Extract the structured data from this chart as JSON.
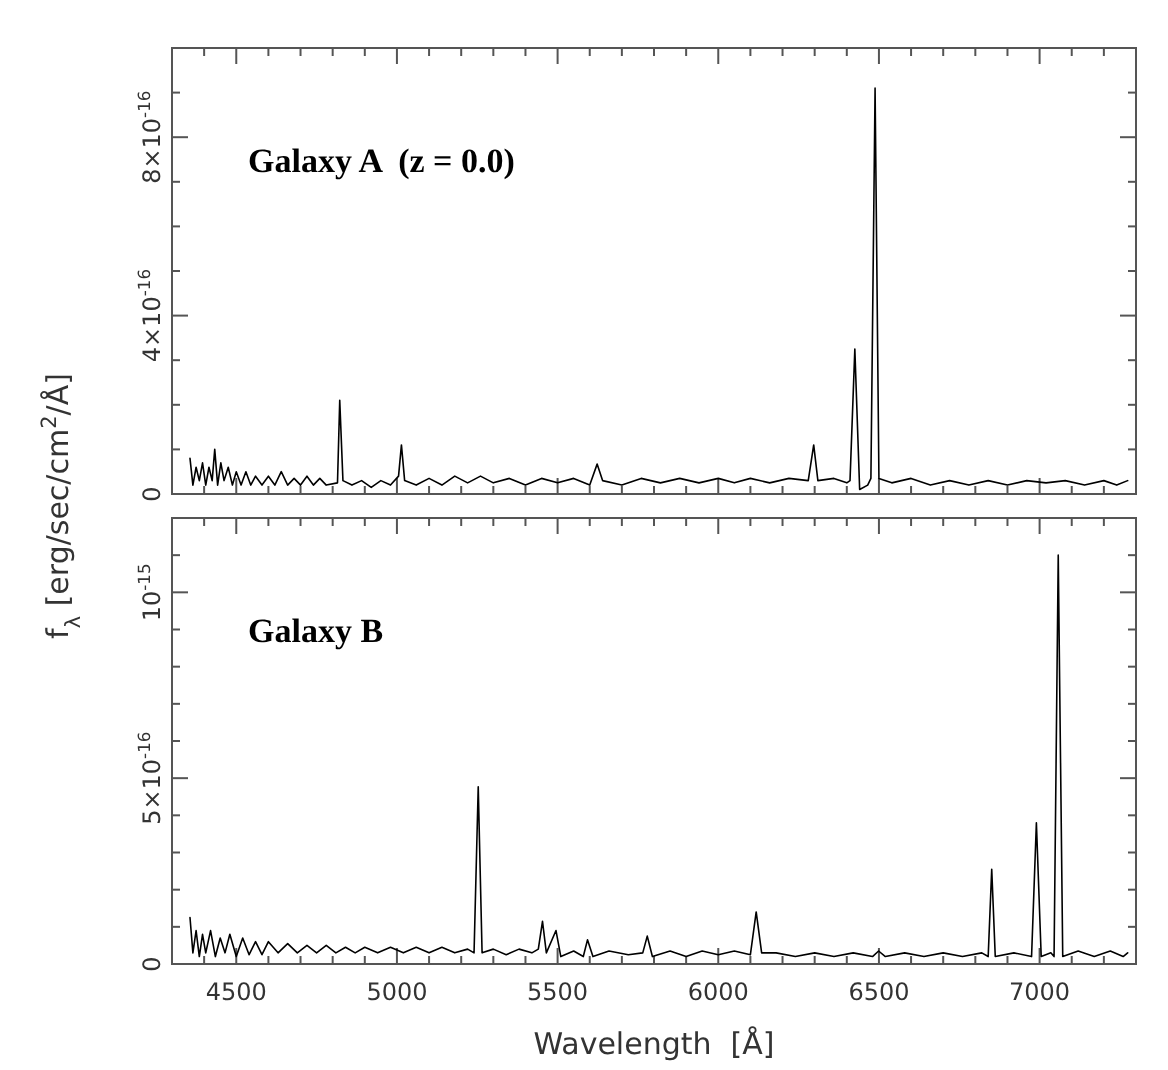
{
  "chart_data": [
    {
      "type": "line",
      "ylabel": "f$_{λ}$ [erg/sec/cm$^{2}$/Å]",
      "annotations": [
        "Galaxy A  (z = 0.0)"
      ],
      "tick_labels": "y",
      "xlim": [
        4300,
        7300
      ],
      "ylim": [
        0,
        1e-15
      ],
      "xticks": [
        {
          "value": 4400,
          "label": null
        },
        4500,
        {
          "value": 4600,
          "label": null
        },
        {
          "value": 4700,
          "label": null
        },
        {
          "value": 4800,
          "label": null
        },
        {
          "value": 4900,
          "label": null
        },
        5000,
        {
          "value": 5100,
          "label": null
        },
        {
          "value": 5200,
          "label": null
        },
        {
          "value": 5300,
          "label": null
        },
        {
          "value": 5400,
          "label": null
        },
        5500,
        {
          "value": 5600,
          "label": null
        },
        {
          "value": 5700,
          "label": null
        },
        {
          "value": 5800,
          "label": null
        },
        {
          "value": 5900,
          "label": null
        },
        6000,
        {
          "value": 6100,
          "label": null
        },
        {
          "value": 6200,
          "label": null
        },
        {
          "value": 6300,
          "label": null
        },
        {
          "value": 6400,
          "label": null
        },
        6500,
        {
          "value": 6600,
          "label": null
        },
        {
          "value": 6700,
          "label": null
        },
        {
          "value": 6800,
          "label": null
        },
        {
          "value": 6900,
          "label": null
        },
        7000,
        {
          "value": 7100,
          "label": null
        },
        {
          "value": 7200,
          "label": null
        }
      ],
      "yticks": [
        0,
        {
          "value": 1e-16,
          "label": null
        },
        {
          "value": 2e-16,
          "label": null
        },
        {
          "value": 3e-16,
          "label": null
        },
        {
          "value": 4e-16,
          "label": "4×10$^{-16}$"
        },
        {
          "value": 5e-16,
          "label": null
        },
        {
          "value": 6e-16,
          "label": null
        },
        {
          "value": 7e-16,
          "label": null
        },
        {
          "value": 8e-16,
          "label": "8×10$^{-16}$"
        },
        {
          "value": 9e-16,
          "label": null
        }
      ],
      "series": [
        {
          "color": "#000000",
          "x": [
            4356,
            4365,
            4375,
            4385,
            4395,
            4405,
            4415,
            4425,
            4433,
            4442,
            4452,
            4462,
            4475,
            4488,
            4500,
            4515,
            4530,
            4545,
            4560,
            4580,
            4600,
            4620,
            4640,
            4660,
            4680,
            4700,
            4720,
            4740,
            4760,
            4780,
            4815,
            4822,
            4832,
            4860,
            4890,
            4920,
            4950,
            4980,
            5005,
            5014,
            5024,
            5060,
            5100,
            5140,
            5180,
            5220,
            5260,
            5300,
            5350,
            5400,
            5450,
            5500,
            5550,
            5600,
            5623,
            5640,
            5700,
            5760,
            5820,
            5880,
            5940,
            6000,
            6050,
            6100,
            6160,
            6220,
            6280,
            6297,
            6310,
            6360,
            6400,
            6410,
            6425,
            6440,
            6465,
            6475,
            6488,
            6500,
            6540,
            6600,
            6660,
            6720,
            6780,
            6840,
            6900,
            6960,
            7020,
            7080,
            7140,
            7200,
            7240,
            7274
          ],
          "values": [
            8e-17,
            2e-17,
            6e-17,
            3e-17,
            7e-17,
            2e-17,
            6e-17,
            3e-17,
            1e-16,
            2e-17,
            7e-17,
            3e-17,
            6e-17,
            2e-17,
            5e-17,
            2e-17,
            5e-17,
            2e-17,
            4e-17,
            2e-17,
            4e-17,
            2e-17,
            5e-17,
            2e-17,
            3.5e-17,
            2e-17,
            4e-17,
            2e-17,
            3.5e-17,
            2e-17,
            2.5e-17,
            2.1e-16,
            3e-17,
            2e-17,
            3e-17,
            1.5e-17,
            3e-17,
            2e-17,
            4e-17,
            1.1e-16,
            3e-17,
            2e-17,
            3.5e-17,
            2e-17,
            4e-17,
            2.5e-17,
            4e-17,
            2.5e-17,
            3.5e-17,
            2e-17,
            3.5e-17,
            2.5e-17,
            3.5e-17,
            2e-17,
            6.7e-17,
            3e-17,
            2e-17,
            3.5e-17,
            2.5e-17,
            3.5e-17,
            2.5e-17,
            3.5e-17,
            2.5e-17,
            3.5e-17,
            2.5e-17,
            3.5e-17,
            3e-17,
            1.1e-16,
            3e-17,
            3.5e-17,
            2.5e-17,
            3e-17,
            3.25e-16,
            1e-17,
            2e-17,
            3.5e-17,
            9.1e-16,
            3.5e-17,
            2.5e-17,
            3.5e-17,
            2e-17,
            3e-17,
            2e-17,
            3e-17,
            2e-17,
            3e-17,
            2.5e-17,
            3e-17,
            2e-17,
            3e-17,
            2e-17,
            3e-17
          ]
        }
      ]
    },
    {
      "type": "line",
      "xlabel": "Wavelength  [Å]",
      "annotations": [
        "Galaxy B"
      ],
      "xlim": [
        4300,
        7300
      ],
      "ylim": [
        0,
        1.2e-15
      ],
      "xticks": [
        {
          "value": 4400,
          "label": null
        },
        4500,
        {
          "value": 4600,
          "label": null
        },
        {
          "value": 4700,
          "label": null
        },
        {
          "value": 4800,
          "label": null
        },
        {
          "value": 4900,
          "label": null
        },
        5000,
        {
          "value": 5100,
          "label": null
        },
        {
          "value": 5200,
          "label": null
        },
        {
          "value": 5300,
          "label": null
        },
        {
          "value": 5400,
          "label": null
        },
        5500,
        {
          "value": 5600,
          "label": null
        },
        {
          "value": 5700,
          "label": null
        },
        {
          "value": 5800,
          "label": null
        },
        {
          "value": 5900,
          "label": null
        },
        6000,
        {
          "value": 6100,
          "label": null
        },
        {
          "value": 6200,
          "label": null
        },
        {
          "value": 6300,
          "label": null
        },
        {
          "value": 6400,
          "label": null
        },
        6500,
        {
          "value": 6600,
          "label": null
        },
        {
          "value": 6700,
          "label": null
        },
        {
          "value": 6800,
          "label": null
        },
        {
          "value": 6900,
          "label": null
        },
        7000,
        {
          "value": 7100,
          "label": null
        },
        {
          "value": 7200,
          "label": null
        }
      ],
      "yticks": [
        0,
        {
          "value": 1e-16,
          "label": null
        },
        {
          "value": 2e-16,
          "label": null
        },
        {
          "value": 3e-16,
          "label": null
        },
        {
          "value": 4e-16,
          "label": null
        },
        {
          "value": 5e-16,
          "label": "5×10$^{-16}$"
        },
        {
          "value": 6e-16,
          "label": null
        },
        {
          "value": 7e-16,
          "label": null
        },
        {
          "value": 8e-16,
          "label": null
        },
        {
          "value": 9e-16,
          "label": null
        },
        {
          "value": 1e-15,
          "label": "10$^{-15}$"
        },
        {
          "value": 1.1e-15,
          "label": null
        }
      ],
      "series": [
        {
          "color": "#000000",
          "x": [
            4356,
            4365,
            4375,
            4385,
            4395,
            4405,
            4420,
            4435,
            4450,
            4465,
            4480,
            4500,
            4520,
            4540,
            4560,
            4580,
            4600,
            4630,
            4660,
            4690,
            4720,
            4750,
            4780,
            4810,
            4840,
            4870,
            4900,
            4940,
            4980,
            5020,
            5060,
            5100,
            5140,
            5180,
            5220,
            5240,
            5253,
            5265,
            5300,
            5340,
            5380,
            5420,
            5440,
            5453,
            5465,
            5495,
            5510,
            5550,
            5580,
            5593,
            5610,
            5660,
            5720,
            5765,
            5779,
            5795,
            5850,
            5900,
            5950,
            6000,
            6050,
            6100,
            6118,
            6135,
            6180,
            6240,
            6300,
            6360,
            6420,
            6480,
            6499,
            6520,
            6580,
            6640,
            6700,
            6760,
            6820,
            6840,
            6851,
            6862,
            6920,
            6975,
            6990,
            7005,
            7035,
            7045,
            7058,
            7072,
            7120,
            7170,
            7220,
            7260,
            7274
          ],
          "values": [
            1.25e-16,
            3e-17,
            9e-17,
            2e-17,
            8e-17,
            3e-17,
            9e-17,
            2e-17,
            7e-17,
            3e-17,
            8e-17,
            2e-17,
            7e-17,
            2.5e-17,
            6e-17,
            2.5e-17,
            6e-17,
            3e-17,
            5.5e-17,
            3e-17,
            5e-17,
            3e-17,
            5e-17,
            3e-17,
            4.5e-17,
            3e-17,
            4.5e-17,
            3e-17,
            4.5e-17,
            3e-17,
            4.5e-17,
            3e-17,
            4.5e-17,
            3e-17,
            4e-17,
            3e-17,
            4.77e-16,
            3e-17,
            4e-17,
            2.5e-17,
            4e-17,
            3e-17,
            4e-17,
            1.15e-16,
            3e-17,
            9e-17,
            2e-17,
            3.5e-17,
            2e-17,
            6.5e-17,
            2e-17,
            3.5e-17,
            2.5e-17,
            3e-17,
            7.5e-17,
            2e-17,
            3.5e-17,
            2e-17,
            3.5e-17,
            2.5e-17,
            3.5e-17,
            2.5e-17,
            1.4e-16,
            3e-17,
            3e-17,
            2e-17,
            3e-17,
            2e-17,
            3e-17,
            2e-17,
            3.5e-17,
            2e-17,
            3e-17,
            2e-17,
            3e-17,
            2e-17,
            3e-17,
            2e-17,
            2.55e-16,
            2e-17,
            3e-17,
            2e-17,
            3.8e-16,
            2e-17,
            3e-17,
            2e-17,
            1.1e-15,
            2e-17,
            3.5e-17,
            2e-17,
            3.5e-17,
            2e-17,
            3e-17
          ]
        }
      ]
    }
  ]
}
